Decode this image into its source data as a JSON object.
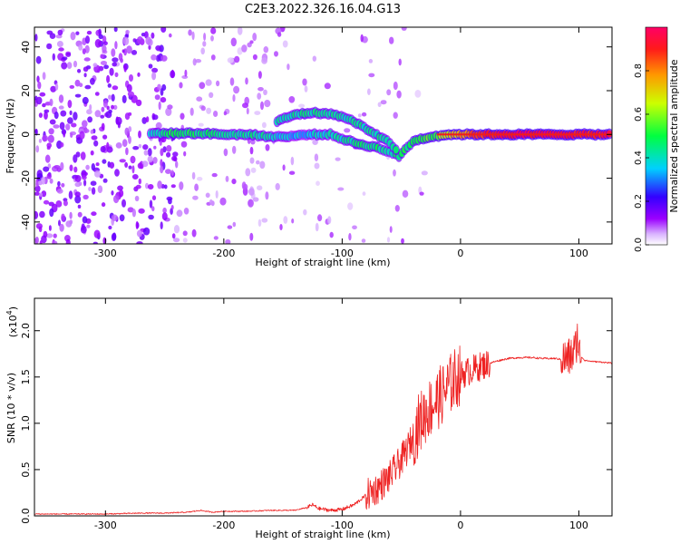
{
  "figure_title": "C2E3.2022.326.16.04.G13",
  "colors": {
    "snr_line": "#ee2222",
    "spectrogram_background": "#ffffff",
    "ridge_core": "#ee1c1c"
  },
  "chart_data": [
    {
      "type": "heatmap",
      "title": "",
      "xlabel": "Height of straight line (km)",
      "ylabel": "Frequency (Hz)",
      "xlim": [
        -360,
        128
      ],
      "ylim": [
        -50,
        49
      ],
      "x_ticks": [
        "-300",
        "-200",
        "-100",
        "0",
        "100"
      ],
      "x_tick_values": [
        -300,
        -200,
        -100,
        0,
        100
      ],
      "y_ticks": [
        "-40",
        "-20",
        "0",
        "20",
        "40"
      ],
      "y_tick_values": [
        -40,
        -20,
        0,
        20,
        40
      ],
      "colorbar": {
        "label": "Normalized spectral amplitude",
        "range": [
          0.0,
          1.0
        ],
        "ticks": [
          "0.0",
          "0.2",
          "0.4",
          "0.6",
          "0.8"
        ],
        "tick_values": [
          0.0,
          0.2,
          0.4,
          0.6,
          0.8
        ],
        "colormap": [
          "#ffffff",
          "#9b00ff",
          "#0000ff",
          "#00e5ff",
          "#00ff00",
          "#ffff00",
          "#ff7f00",
          "#ff0000",
          "#ff0066"
        ]
      },
      "ridge": [
        {
          "height_km": -262,
          "frequency_hz": 0.5,
          "amplitude": 0.35
        },
        {
          "height_km": -240,
          "frequency_hz": 0.5,
          "amplitude": 0.5
        },
        {
          "height_km": -220,
          "frequency_hz": 0.5,
          "amplitude": 0.45
        },
        {
          "height_km": -200,
          "frequency_hz": 0.0,
          "amplitude": 0.45
        },
        {
          "height_km": -180,
          "frequency_hz": 0.0,
          "amplitude": 0.45
        },
        {
          "height_km": -160,
          "frequency_hz": -1.0,
          "amplitude": 0.4
        },
        {
          "height_km": -145,
          "frequency_hz": -1.0,
          "amplitude": 0.35
        },
        {
          "height_km": -130,
          "frequency_hz": 0.0,
          "amplitude": 0.35
        },
        {
          "height_km": -110,
          "frequency_hz": 0.0,
          "amplitude": 0.4
        },
        {
          "height_km": -100,
          "frequency_hz": -2.0,
          "amplitude": 0.4
        },
        {
          "height_km": -85,
          "frequency_hz": -4.5,
          "amplitude": 0.45
        },
        {
          "height_km": -70,
          "frequency_hz": -6.0,
          "amplitude": 0.45
        },
        {
          "height_km": -60,
          "frequency_hz": -8.0,
          "amplitude": 0.45
        },
        {
          "height_km": -52,
          "frequency_hz": -10.0,
          "amplitude": 0.45
        },
        {
          "height_km": -40,
          "frequency_hz": -3.0,
          "amplitude": 0.5
        },
        {
          "height_km": -25,
          "frequency_hz": -1.0,
          "amplitude": 0.55
        },
        {
          "height_km": -10,
          "frequency_hz": 0.0,
          "amplitude": 0.65
        },
        {
          "height_km": 10,
          "frequency_hz": 0.0,
          "amplitude": 0.85
        },
        {
          "height_km": 40,
          "frequency_hz": 0.0,
          "amplitude": 0.95
        },
        {
          "height_km": 70,
          "frequency_hz": 0.0,
          "amplitude": 0.95
        },
        {
          "height_km": 100,
          "frequency_hz": 0.0,
          "amplitude": 0.9
        },
        {
          "height_km": 128,
          "frequency_hz": 0.0,
          "amplitude": 0.9
        }
      ],
      "ridge_upper_branch": [
        {
          "height_km": -155,
          "frequency_hz": 6.0
        },
        {
          "height_km": -140,
          "frequency_hz": 9.0
        },
        {
          "height_km": -125,
          "frequency_hz": 10.0
        },
        {
          "height_km": -105,
          "frequency_hz": 9.0
        },
        {
          "height_km": -90,
          "frequency_hz": 6.0
        },
        {
          "height_km": -75,
          "frequency_hz": 1.0
        },
        {
          "height_km": -62,
          "frequency_hz": -3.0
        },
        {
          "height_km": -52,
          "frequency_hz": -8.0
        }
      ]
    },
    {
      "type": "line",
      "title": "",
      "xlabel": "Height of straight line (km)",
      "ylabel": "SNR (10 * v/v)",
      "y_multiplier_label": "(x10",
      "y_multiplier_exponent": "4",
      "y_multiplier_close": ")",
      "xlim": [
        -360,
        128
      ],
      "ylim": [
        0.0,
        2.35
      ],
      "x_ticks": [
        "-300",
        "-200",
        "-100",
        "0",
        "100"
      ],
      "x_tick_values": [
        -300,
        -200,
        -100,
        0,
        100
      ],
      "y_ticks": [
        "0.0",
        "0.5",
        "1.0",
        "1.5",
        "2.0"
      ],
      "y_tick_values": [
        0.0,
        0.5,
        1.0,
        1.5,
        2.0
      ],
      "series": [
        {
          "color": "#ee2222",
          "x": [
            -360,
            -330,
            -300,
            -270,
            -250,
            -230,
            -220,
            -210,
            -200,
            -180,
            -160,
            -140,
            -130,
            -125,
            -120,
            -110,
            -100,
            -90,
            -80,
            -70,
            -60,
            -50,
            -45,
            -40,
            -35,
            -30,
            -25,
            -20,
            -15,
            -10,
            -5,
            0,
            10,
            20,
            30,
            40,
            50,
            60,
            70,
            80,
            85,
            90,
            93,
            95,
            97,
            99,
            100,
            102,
            105,
            110,
            120,
            128
          ],
          "y": [
            0.02,
            0.02,
            0.02,
            0.03,
            0.03,
            0.04,
            0.06,
            0.04,
            0.05,
            0.05,
            0.06,
            0.06,
            0.09,
            0.12,
            0.08,
            0.06,
            0.07,
            0.12,
            0.22,
            0.3,
            0.42,
            0.6,
            0.72,
            0.85,
            1.0,
            1.1,
            1.18,
            1.25,
            1.32,
            1.4,
            1.48,
            1.52,
            1.58,
            1.63,
            1.67,
            1.7,
            1.71,
            1.71,
            1.7,
            1.7,
            1.69,
            1.7,
            1.72,
            1.75,
            1.8,
            1.95,
            1.75,
            1.72,
            1.68,
            1.67,
            1.66,
            1.65
          ]
        }
      ]
    }
  ]
}
